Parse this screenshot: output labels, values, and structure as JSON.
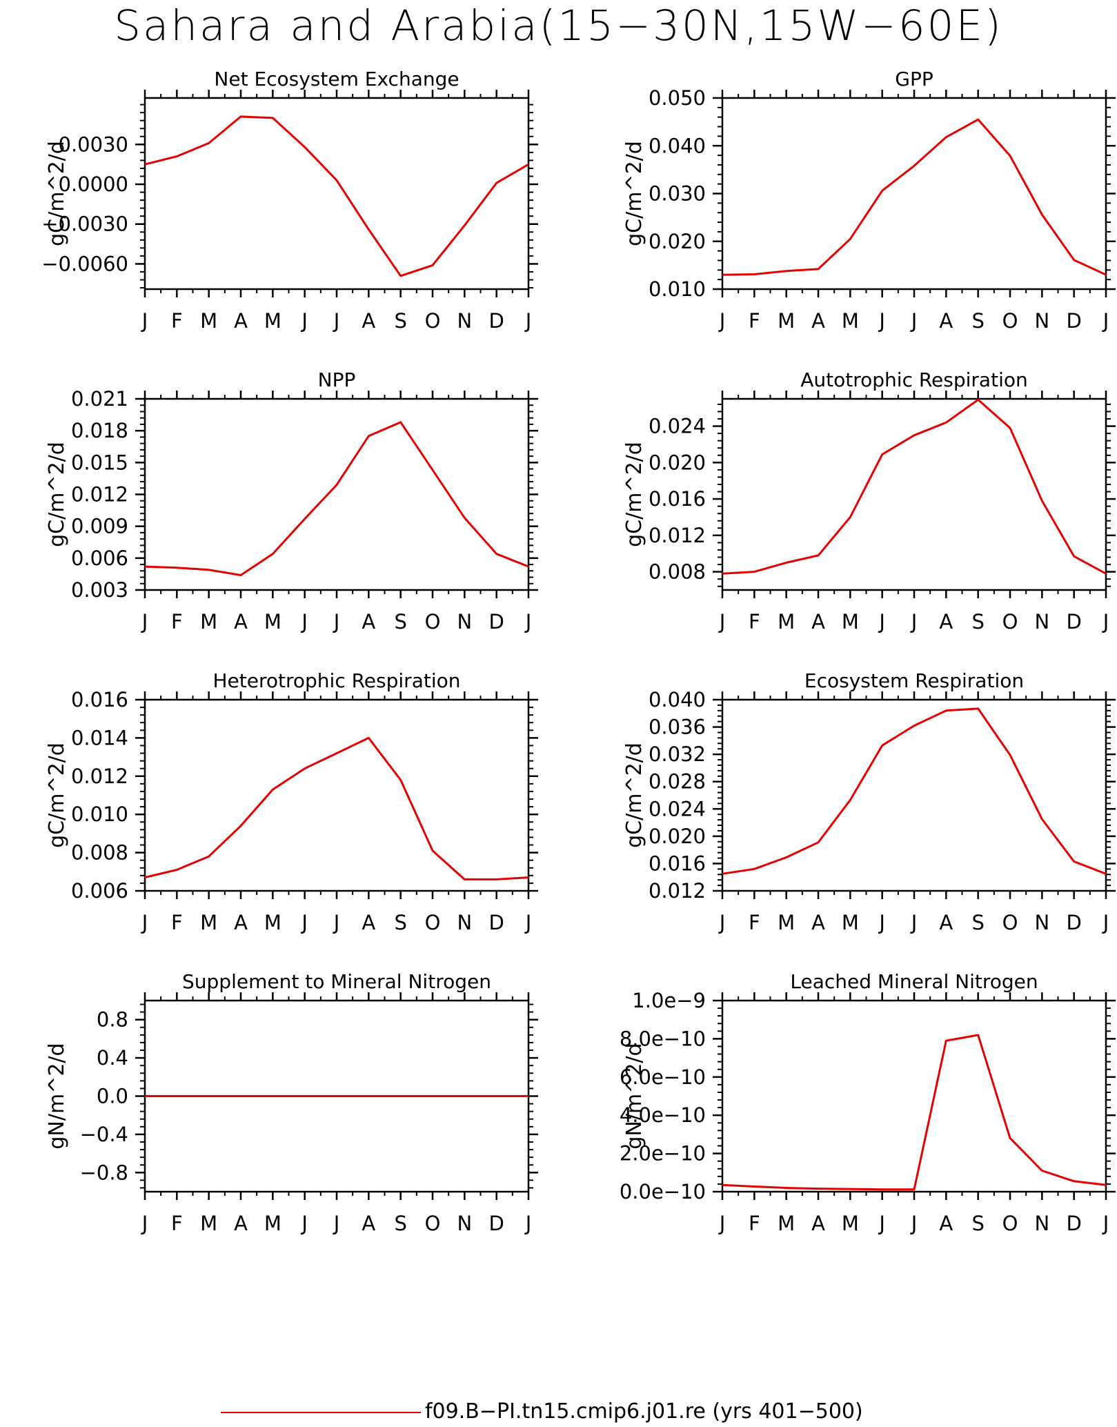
{
  "title": "Sahara and Arabia(15−30N,15W−60E)",
  "legend": {
    "label": "f09.B−PI.tn15.cmip6.j01.re (yrs 401−500)",
    "color": "#e60000"
  },
  "months": [
    "J",
    "F",
    "M",
    "A",
    "M",
    "J",
    "J",
    "A",
    "S",
    "O",
    "N",
    "D",
    "J"
  ],
  "chart_data": [
    {
      "id": "nee",
      "type": "line",
      "title": "Net Ecosystem Exchange",
      "ylabel": "gC/m^2/d",
      "ylim": [
        -0.0079,
        0.0065
      ],
      "yticks": [
        -0.006,
        -0.003,
        0.0,
        0.003
      ],
      "ytick_labels": [
        "−0.0060",
        "−0.0030",
        "0.0000",
        "0.0030"
      ],
      "minor_step": 0.0006,
      "series": [
        {
          "values": [
            0.0015,
            0.0021,
            0.0031,
            0.0051,
            0.005,
            0.0028,
            0.0003,
            -0.0034,
            -0.0069,
            -0.0061,
            -0.0031,
            0.0001,
            0.0015
          ]
        }
      ]
    },
    {
      "id": "gpp",
      "type": "line",
      "title": "GPP",
      "ylabel": "gC/m^2/d",
      "ylim": [
        0.01,
        0.05
      ],
      "yticks": [
        0.01,
        0.02,
        0.03,
        0.04,
        0.05
      ],
      "ytick_labels": [
        "0.010",
        "0.020",
        "0.030",
        "0.040",
        "0.050"
      ],
      "minor_step": 0.002,
      "series": [
        {
          "values": [
            0.013,
            0.0131,
            0.0138,
            0.0142,
            0.0205,
            0.0306,
            0.0358,
            0.0418,
            0.0455,
            0.0379,
            0.0256,
            0.0161,
            0.013
          ]
        }
      ]
    },
    {
      "id": "npp",
      "type": "line",
      "title": "NPP",
      "ylabel": "gC/m^2/d",
      "ylim": [
        0.003,
        0.021
      ],
      "yticks": [
        0.003,
        0.006,
        0.009,
        0.012,
        0.015,
        0.018,
        0.021
      ],
      "ytick_labels": [
        "0.003",
        "0.006",
        "0.009",
        "0.012",
        "0.015",
        "0.018",
        "0.021"
      ],
      "minor_step": 0.0006,
      "series": [
        {
          "values": [
            0.0052,
            0.0051,
            0.0049,
            0.0044,
            0.0064,
            0.0097,
            0.0129,
            0.0175,
            0.0188,
            0.0143,
            0.0098,
            0.0064,
            0.0052
          ]
        }
      ]
    },
    {
      "id": "ar",
      "type": "line",
      "title": "Autotrophic Respiration",
      "ylabel": "gC/m^2/d",
      "ylim": [
        0.006,
        0.027
      ],
      "yticks": [
        0.008,
        0.012,
        0.016,
        0.02,
        0.024
      ],
      "ytick_labels": [
        "0.008",
        "0.012",
        "0.016",
        "0.020",
        "0.024"
      ],
      "minor_step": 0.0008,
      "series": [
        {
          "values": [
            0.0078,
            0.008,
            0.009,
            0.0098,
            0.014,
            0.0209,
            0.023,
            0.0244,
            0.0269,
            0.0238,
            0.0158,
            0.0097,
            0.0078
          ]
        }
      ]
    },
    {
      "id": "hr",
      "type": "line",
      "title": "Heterotrophic Respiration",
      "ylabel": "gC/m^2/d",
      "ylim": [
        0.006,
        0.016
      ],
      "yticks": [
        0.006,
        0.008,
        0.01,
        0.012,
        0.014,
        0.016
      ],
      "ytick_labels": [
        "0.006",
        "0.008",
        "0.010",
        "0.012",
        "0.014",
        "0.016"
      ],
      "minor_step": 0.0004,
      "series": [
        {
          "values": [
            0.0067,
            0.0071,
            0.0078,
            0.0094,
            0.0113,
            0.0124,
            0.0132,
            0.014,
            0.0118,
            0.0081,
            0.0066,
            0.0066,
            0.0067
          ]
        }
      ]
    },
    {
      "id": "er",
      "type": "line",
      "title": "Ecosystem Respiration",
      "ylabel": "gC/m^2/d",
      "ylim": [
        0.012,
        0.04
      ],
      "yticks": [
        0.012,
        0.016,
        0.02,
        0.024,
        0.028,
        0.032,
        0.036,
        0.04
      ],
      "ytick_labels": [
        "0.012",
        "0.016",
        "0.020",
        "0.024",
        "0.028",
        "0.032",
        "0.036",
        "0.040"
      ],
      "minor_step": 0.0008,
      "series": [
        {
          "values": [
            0.0145,
            0.0152,
            0.0169,
            0.0191,
            0.0253,
            0.0333,
            0.0362,
            0.0384,
            0.0387,
            0.0319,
            0.0225,
            0.0163,
            0.0145
          ]
        }
      ]
    },
    {
      "id": "sminn",
      "type": "line",
      "title": "Supplement to Mineral Nitrogen",
      "ylabel": "gN/m^2/d",
      "ylim": [
        -1.0,
        1.0
      ],
      "yticks": [
        -0.8,
        -0.4,
        0.0,
        0.4,
        0.8
      ],
      "ytick_labels": [
        "−0.8",
        "−0.4",
        "0.0",
        "0.4",
        "0.8"
      ],
      "minor_step": 0.08,
      "series": [
        {
          "values": [
            0,
            0,
            0,
            0,
            0,
            0,
            0,
            0,
            0,
            0,
            0,
            0,
            0
          ]
        }
      ]
    },
    {
      "id": "leach",
      "type": "line",
      "title": "Leached Mineral Nitrogen",
      "ylabel": "gN/m^2/d",
      "ylim": [
        0.0,
        1e-09
      ],
      "yticks": [
        0.0,
        2e-10,
        4e-10,
        6e-10,
        8e-10,
        1e-09
      ],
      "ytick_labels": [
        "0.0e−10",
        "2.0e−10",
        "4.0e−10",
        "6.0e−10",
        "8.0e−10",
        "1.0e−9"
      ],
      "minor_step": 4e-11,
      "series": [
        {
          "values": [
            3.5e-11,
            2.7e-11,
            2e-11,
            1.6e-11,
            1.4e-11,
            1.2e-11,
            1.2e-11,
            7.9e-10,
            8.2e-10,
            2.8e-10,
            1.1e-10,
            5.5e-11,
            3.5e-11
          ]
        }
      ]
    }
  ]
}
